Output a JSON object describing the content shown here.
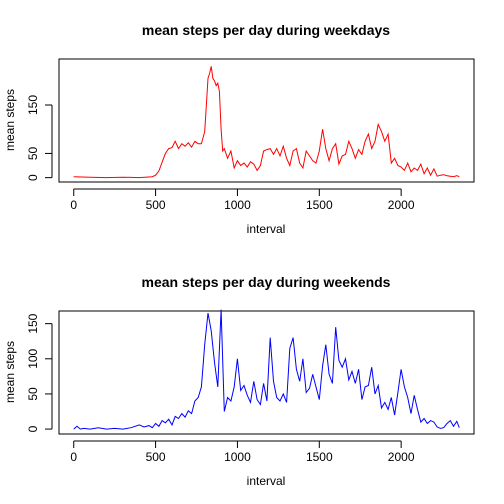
{
  "chart_data": [
    {
      "type": "line",
      "title": "mean steps per day during weekdays",
      "xlabel": "interval",
      "ylabel": "mean steps",
      "xlim": [
        -90,
        2445
      ],
      "ylim": [
        -9,
        245
      ],
      "xticks": [
        0,
        500,
        1000,
        1500,
        2000
      ],
      "yticks": [
        0,
        50,
        150
      ],
      "grid": false,
      "series": [
        {
          "color": "#ff0000",
          "x": [
            0,
            100,
            200,
            300,
            400,
            480,
            500,
            520,
            560,
            580,
            600,
            620,
            640,
            660,
            680,
            700,
            720,
            740,
            760,
            780,
            800,
            810,
            820,
            830,
            840,
            850,
            860,
            870,
            880,
            890,
            900,
            910,
            920,
            940,
            960,
            980,
            1000,
            1020,
            1040,
            1060,
            1080,
            1100,
            1120,
            1140,
            1160,
            1180,
            1200,
            1220,
            1240,
            1260,
            1280,
            1300,
            1320,
            1340,
            1360,
            1380,
            1400,
            1420,
            1440,
            1460,
            1480,
            1500,
            1520,
            1540,
            1560,
            1580,
            1600,
            1620,
            1640,
            1660,
            1680,
            1700,
            1720,
            1740,
            1760,
            1780,
            1800,
            1820,
            1840,
            1860,
            1880,
            1900,
            1920,
            1940,
            1960,
            1980,
            2000,
            2020,
            2040,
            2060,
            2080,
            2100,
            2120,
            2140,
            2160,
            2180,
            2200,
            2220,
            2240,
            2260,
            2280,
            2300,
            2320,
            2340,
            2355
          ],
          "y": [
            2,
            1,
            0,
            1,
            0,
            2,
            5,
            14,
            50,
            60,
            62,
            75,
            60,
            70,
            65,
            72,
            63,
            75,
            70,
            70,
            95,
            148,
            205,
            215,
            230,
            205,
            200,
            190,
            195,
            178,
            100,
            55,
            60,
            40,
            55,
            20,
            35,
            25,
            30,
            22,
            33,
            28,
            15,
            25,
            55,
            58,
            60,
            48,
            60,
            45,
            65,
            40,
            25,
            55,
            60,
            30,
            20,
            55,
            45,
            35,
            30,
            55,
            100,
            60,
            35,
            60,
            70,
            28,
            45,
            48,
            75,
            60,
            40,
            58,
            48,
            75,
            90,
            60,
            75,
            110,
            95,
            75,
            90,
            30,
            40,
            25,
            22,
            15,
            30,
            12,
            20,
            15,
            28,
            8,
            20,
            5,
            18,
            3,
            5,
            6,
            4,
            3,
            2,
            4,
            2
          ]
        }
      ]
    },
    {
      "type": "line",
      "title": "mean steps per day during weekends",
      "xlabel": "interval",
      "ylabel": "mean steps",
      "xlim": [
        -90,
        2445
      ],
      "ylim": [
        -7,
        168
      ],
      "xticks": [
        0,
        500,
        1000,
        1500,
        2000
      ],
      "yticks": [
        0,
        50,
        100,
        150
      ],
      "grid": false,
      "series": [
        {
          "color": "#0000ff",
          "x": [
            0,
            20,
            40,
            60,
            100,
            150,
            200,
            250,
            300,
            350,
            400,
            430,
            460,
            480,
            500,
            520,
            540,
            560,
            580,
            600,
            620,
            640,
            660,
            680,
            700,
            720,
            740,
            760,
            780,
            800,
            820,
            840,
            860,
            880,
            900,
            920,
            940,
            960,
            980,
            1000,
            1020,
            1040,
            1060,
            1080,
            1100,
            1120,
            1140,
            1160,
            1180,
            1200,
            1220,
            1240,
            1260,
            1280,
            1300,
            1320,
            1340,
            1360,
            1380,
            1400,
            1420,
            1440,
            1460,
            1480,
            1500,
            1520,
            1540,
            1560,
            1580,
            1600,
            1620,
            1640,
            1660,
            1680,
            1700,
            1720,
            1740,
            1760,
            1780,
            1800,
            1820,
            1840,
            1860,
            1880,
            1900,
            1920,
            1940,
            1960,
            1980,
            2000,
            2020,
            2040,
            2060,
            2080,
            2100,
            2120,
            2140,
            2160,
            2180,
            2200,
            2220,
            2240,
            2260,
            2280,
            2300,
            2320,
            2340,
            2355
          ],
          "y": [
            0,
            4,
            0,
            1,
            0,
            2,
            0,
            1,
            0,
            2,
            6,
            3,
            5,
            2,
            8,
            4,
            12,
            9,
            14,
            6,
            18,
            15,
            22,
            17,
            26,
            22,
            40,
            45,
            60,
            120,
            165,
            140,
            95,
            60,
            170,
            25,
            45,
            40,
            60,
            100,
            55,
            62,
            48,
            38,
            68,
            42,
            35,
            65,
            40,
            130,
            68,
            45,
            40,
            50,
            38,
            115,
            130,
            85,
            68,
            100,
            52,
            58,
            78,
            60,
            42,
            90,
            120,
            78,
            65,
            145,
            98,
            88,
            100,
            70,
            82,
            65,
            85,
            42,
            60,
            62,
            88,
            50,
            62,
            30,
            38,
            28,
            45,
            20,
            52,
            85,
            60,
            45,
            22,
            48,
            28,
            10,
            15,
            8,
            12,
            10,
            3,
            1,
            2,
            8,
            12,
            4,
            11,
            2
          ]
        }
      ]
    }
  ]
}
